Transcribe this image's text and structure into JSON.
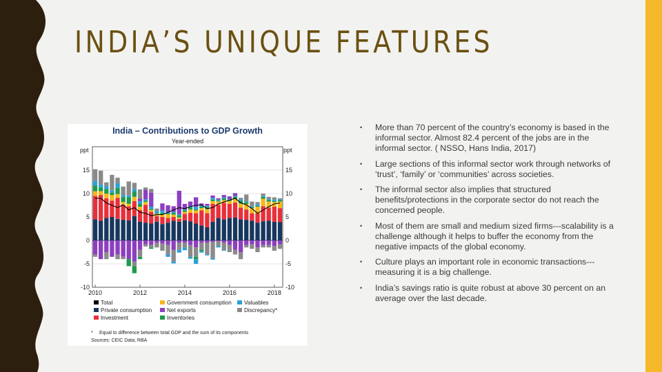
{
  "slide": {
    "title": "INDIA’S UNIQUE FEATURES",
    "colors": {
      "left_bar": "#2d1f0d",
      "right_bar": "#f5b82a",
      "title": "#6b5012",
      "background": "#f2f2f0"
    }
  },
  "bullets": [
    {
      "marker": "•",
      "text": "More than 70 percent of the country’s economy is based in the informal sector. Almost 82.4 percent of the jobs are in the informal sector. ( NSSO, Hans India, 2017)"
    },
    {
      "marker": "•",
      "text": "Large sections of this informal sector work through networks of ‘trust’, ‘family’ or ‘communities’ across societies."
    },
    {
      "marker": "•",
      "text": "The informal sector also implies that structured benefits/protections in the corporate sector do not reach the concerned people."
    },
    {
      "marker": "•",
      "text": "Most of them are small and medium sized firms---scalability is a challenge although it helps to buffer the economy from the negative impacts of the global economy."
    },
    {
      "marker": "•",
      "text": "Culture plays an important role in economic transactions---measuring it is a big challenge."
    },
    {
      "marker": "•",
      "text": "India’s savings ratio is quite robust at above 30 percent on an average over the last decade."
    }
  ],
  "chart_data": {
    "type": "bar",
    "stacked": true,
    "title": "India – Contributions to GDP Growth",
    "subtitle": "Year-ended",
    "ylabel_left": "ppt",
    "ylabel_right": "ppt",
    "ylim": [
      -10,
      20
    ],
    "y_ticks": [
      15,
      10,
      5,
      0,
      -5,
      -10
    ],
    "x_tick_labels": [
      "2010",
      "2012",
      "2014",
      "2016",
      "2018"
    ],
    "x_tick_positions": [
      0,
      8,
      16,
      24,
      32
    ],
    "grid": true,
    "legend_position": "bottom",
    "legend": [
      {
        "key": "total",
        "label": "Total"
      },
      {
        "key": "government",
        "label": "Government consumption"
      },
      {
        "key": "valuables",
        "label": "Valuables"
      },
      {
        "key": "private",
        "label": "Private consumption"
      },
      {
        "key": "net_exports",
        "label": "Net exports"
      },
      {
        "key": "discrepancy",
        "label": "Discrepancy*"
      },
      {
        "key": "investment",
        "label": "Investment"
      },
      {
        "key": "inventories",
        "label": "Inventories"
      }
    ],
    "footnote_marker": "*",
    "footnote": "Equal to difference between total GDP and the sum of its components",
    "source": "Sources:  CEIC Data; RBA",
    "colors": {
      "total": "#000000",
      "private": "#17375e",
      "investment": "#e8303a",
      "government": "#f5b81c",
      "net_exports": "#8c3fbf",
      "inventories": "#1d9b4a",
      "valuables": "#2aa0d8",
      "discrepancy": "#8a8a8a"
    },
    "series": {
      "private": [
        4.5,
        4.2,
        4.8,
        5.0,
        4.6,
        4.4,
        4.3,
        5.2,
        4.0,
        3.8,
        3.6,
        4.0,
        3.5,
        3.8,
        4.2,
        4.0,
        4.3,
        4.1,
        3.6,
        3.2,
        2.8,
        4.0,
        4.8,
        4.5,
        4.8,
        4.9,
        4.5,
        4.4,
        4.2,
        3.8,
        4.1,
        4.2,
        4.0,
        3.9
      ],
      "investment": [
        5.0,
        5.5,
        4.2,
        3.5,
        4.5,
        3.2,
        3.0,
        3.2,
        2.5,
        3.8,
        2.5,
        1.2,
        1.5,
        1.0,
        0.8,
        0.6,
        1.4,
        1.8,
        2.2,
        3.2,
        3.0,
        3.8,
        2.8,
        3.5,
        3.0,
        3.2,
        2.5,
        2.2,
        1.6,
        2.0,
        3.2,
        2.8,
        3.2,
        3.0
      ],
      "government": [
        1.0,
        0.8,
        1.0,
        1.2,
        0.8,
        0.6,
        0.5,
        0.9,
        0.7,
        0.6,
        0.4,
        0.5,
        0.6,
        0.8,
        0.5,
        0.3,
        0.4,
        0.7,
        0.6,
        0.5,
        0.9,
        0.6,
        0.7,
        0.6,
        0.6,
        0.8,
        0.9,
        1.2,
        1.1,
        1.4,
        1.6,
        1.3,
        1.0,
        1.4
      ],
      "inventories": [
        1.2,
        0.8,
        1.0,
        0.5,
        1.3,
        1.1,
        1.4,
        1.2,
        0.6,
        0.3,
        0.3,
        0.2,
        0.3,
        0.2,
        0.4,
        0.5,
        0.3,
        0.4,
        0.2,
        0.3,
        0.4,
        0.3,
        0.2,
        0.4,
        0.3,
        0.4,
        0.6,
        0.3,
        0.2,
        0.2,
        0.4,
        0.3,
        0.2,
        0.3
      ],
      "valuables": [
        1.0,
        0.6,
        0.6,
        0.5,
        1.0,
        0.4,
        0.4,
        0.5,
        0.6,
        0.3,
        0.4,
        0.4,
        0.5,
        0.2,
        0.2,
        0.2,
        0.2,
        0.3,
        0.6,
        0.2,
        0.3,
        0.4,
        0.2,
        0.2,
        0.1,
        0.2,
        0.3,
        0.2,
        0.2,
        0.3,
        0.2,
        0.2,
        0.3,
        0.2
      ],
      "net_exports_pos": [
        0,
        0,
        0,
        0,
        0,
        0,
        0,
        0,
        0.5,
        2.0,
        3.0,
        0,
        1.5,
        1.5,
        1.2,
        5.0,
        1.2,
        1.0,
        2.0,
        0.5,
        0.4,
        0.5,
        0.3,
        0.5,
        0.6,
        0.6,
        0,
        0,
        0,
        0,
        0,
        0,
        0,
        0
      ],
      "discrepancy_pos": [
        2.5,
        3.0,
        0.8,
        3.3,
        1.2,
        1.8,
        3.0,
        1.3,
        2.0,
        0.5,
        0.8,
        0.5,
        0,
        0,
        0,
        0,
        0,
        0,
        0,
        0,
        0,
        0,
        0,
        0,
        0,
        0,
        0.3,
        1.5,
        1.0,
        0.5,
        0.5,
        0.5,
        0.5,
        0.2
      ],
      "net_exports_neg": [
        -3.0,
        -4.0,
        -2.5,
        -3.5,
        -3.0,
        -3.5,
        -4.0,
        -4.5,
        -2.0,
        -0.8,
        -1.0,
        -0.5,
        -0.7,
        -1.0,
        -2.0,
        -0.5,
        -0.5,
        -1.0,
        -1.5,
        -0.5,
        -0.5,
        -0.3,
        -0.2,
        -0.5,
        -1.0,
        -2.0,
        -2.5,
        -1.0,
        -0.8,
        -1.5,
        -1.0,
        -1.0,
        -1.2,
        -0.8
      ],
      "discrepancy_neg": [
        -0.5,
        0,
        -1.5,
        0,
        -1.0,
        -0.5,
        0,
        -1.0,
        -1.5,
        -0.5,
        -0.5,
        -1.0,
        -1.5,
        -2.0,
        -2.5,
        -1.5,
        -1.0,
        -2.5,
        -2.0,
        -1.5,
        -2.5,
        -3.5,
        -1.0,
        -1.5,
        -1.5,
        -1.0,
        -1.5,
        -0.5,
        -1.0,
        -1.0,
        -0.5,
        -0.5,
        -1.0,
        -1.0
      ],
      "inventories_neg": [
        0,
        0,
        0,
        0,
        0,
        0,
        -1.5,
        -1.5,
        -0.5,
        0,
        -0.3,
        0,
        0,
        0,
        0,
        0,
        0,
        0,
        -0.5,
        -0.3,
        0,
        0,
        0,
        0,
        0,
        0,
        0,
        0,
        0,
        0,
        0,
        0,
        0,
        0
      ],
      "valuables_neg": [
        0,
        0,
        0,
        0,
        0,
        0,
        0,
        0,
        0,
        0,
        0,
        0,
        0,
        -0.5,
        -0.4,
        -0.6,
        -0.6,
        -0.4,
        -1.0,
        -0.3,
        -0.2,
        -0.3,
        -0.3,
        -0.2,
        0,
        0,
        0,
        0,
        0,
        0,
        0,
        0,
        0,
        0
      ],
      "total": [
        9.0,
        9.0,
        8.0,
        7.5,
        7.0,
        7.6,
        6.5,
        7.0,
        6.0,
        5.8,
        5.3,
        5.5,
        5.5,
        6.0,
        6.5,
        7.0,
        6.8,
        7.2,
        7.5,
        7.6,
        6.8,
        7.0,
        7.8,
        8.2,
        8.6,
        9.0,
        8.0,
        7.6,
        6.8,
        5.8,
        6.5,
        7.2,
        7.8,
        8.0
      ]
    }
  }
}
